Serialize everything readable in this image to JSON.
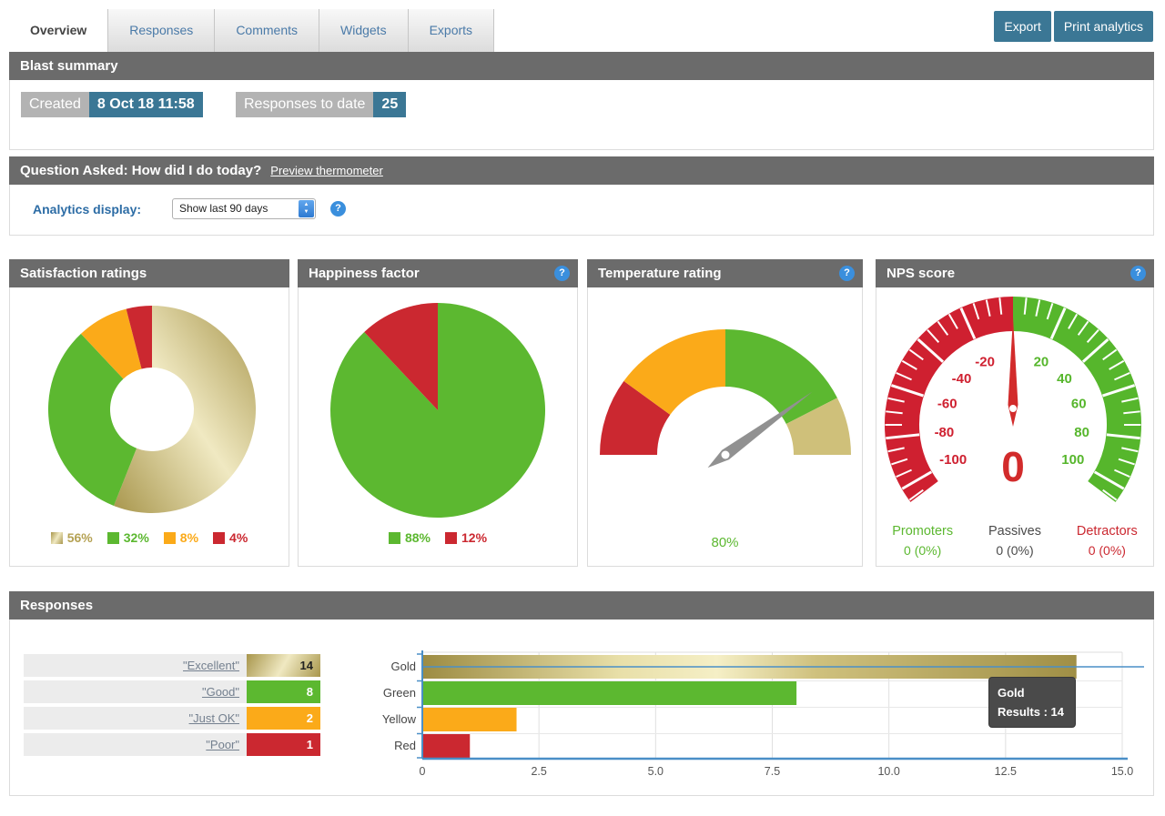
{
  "ui": {
    "help_glyph": "?"
  },
  "header": {
    "tabs": [
      {
        "label": "Overview",
        "active": true
      },
      {
        "label": "Responses",
        "active": false
      },
      {
        "label": "Comments",
        "active": false
      },
      {
        "label": "Widgets",
        "active": false
      },
      {
        "label": "Exports",
        "active": false
      }
    ],
    "buttons": [
      "Export",
      "Print analytics"
    ]
  },
  "blast": {
    "title": "Blast summary",
    "created_label": "Created",
    "created_value": "8 Oct 18 11:58",
    "responses_label": "Responses to date",
    "responses_value": "25"
  },
  "question": {
    "title": "Question Asked: How did I do today?",
    "preview_link": "Preview thermometer",
    "analytics_label": "Analytics display:",
    "select_value": "Show last 90 days"
  },
  "panels": {
    "satisfaction": {
      "title": "Satisfaction ratings"
    },
    "happiness": {
      "title": "Happiness factor"
    },
    "temperature": {
      "title": "Temperature rating"
    },
    "nps": {
      "title": "NPS score"
    }
  },
  "chart_data": [
    {
      "id": "satisfaction-donut",
      "type": "pie",
      "subtype": "donut",
      "title": "Satisfaction ratings",
      "labels": [
        "Gold",
        "Green",
        "Yellow",
        "Red"
      ],
      "values": [
        56,
        32,
        8,
        4
      ],
      "unit": "%",
      "colors": [
        "gold-gradient",
        "#5cb830",
        "#fbaa19",
        "#cb2830"
      ],
      "legend_labels": [
        "56%",
        "32%",
        "8%",
        "4%"
      ],
      "legend_position": "bottom"
    },
    {
      "id": "happiness-pie",
      "type": "pie",
      "title": "Happiness factor",
      "labels": [
        "Green",
        "Red"
      ],
      "values": [
        88,
        12
      ],
      "unit": "%",
      "colors": [
        "#5cb830",
        "#cb2830"
      ],
      "legend_labels": [
        "88%",
        "12%"
      ],
      "legend_position": "bottom"
    },
    {
      "id": "temperature-gauge",
      "type": "gauge",
      "title": "Temperature rating",
      "value": 80,
      "value_label": "80%",
      "min": 0,
      "max": 100,
      "segments": [
        {
          "from": 0,
          "to": 20,
          "color": "#cb2830"
        },
        {
          "from": 20,
          "to": 50,
          "color": "#fbaa19"
        },
        {
          "from": 50,
          "to": 85,
          "color": "#5cb830"
        },
        {
          "from": 85,
          "to": 100,
          "color": "#cfc07a"
        }
      ],
      "needle_color": "#919191"
    },
    {
      "id": "nps-gauge",
      "type": "gauge",
      "title": "NPS score",
      "value": 0,
      "value_label": "0",
      "min": -100,
      "max": 100,
      "major_ticks": [
        -100,
        -80,
        -60,
        -40,
        -20,
        20,
        40,
        60,
        80,
        100
      ],
      "negative_color": "#cf2030",
      "positive_color": "#56b62c",
      "needle_color": "#d22b2b",
      "stats": [
        {
          "label": "Promoters",
          "value": "0 (0%)",
          "color": "#5cb830"
        },
        {
          "label": "Passives",
          "value": "0 (0%)",
          "color": "#4a4a4a"
        },
        {
          "label": "Detractors",
          "value": "0 (0%)",
          "color": "#cb2830"
        }
      ]
    },
    {
      "id": "responses-bar",
      "type": "bar",
      "orientation": "horizontal",
      "categories": [
        "Gold",
        "Green",
        "Yellow",
        "Red"
      ],
      "values": [
        14,
        8,
        2,
        1
      ],
      "colors": [
        "gold-gradient",
        "#5cb830",
        "#fbaa19",
        "#cb2830"
      ],
      "xlim": [
        0,
        15
      ],
      "xticks": [
        "0",
        "2.5",
        "5.0",
        "7.5",
        "10.0",
        "12.5",
        "15.0"
      ],
      "grid": true,
      "axis_color": "#4a8fc7"
    }
  ],
  "responses": {
    "title": "Responses",
    "table": [
      {
        "label": "\"Excellent\"",
        "value": "14",
        "color": "gold"
      },
      {
        "label": "\"Good\"",
        "value": "8",
        "color": "green"
      },
      {
        "label": "\"Just OK\"",
        "value": "2",
        "color": "yellow"
      },
      {
        "label": "\"Poor\"",
        "value": "1",
        "color": "red"
      }
    ],
    "tooltip": {
      "line1": "Gold",
      "line2": "Results : 14"
    }
  },
  "colors": {
    "header_bar": "#6b6b6b",
    "accent_teal": "#3b7795",
    "tab_text": "#4a7aa8",
    "help_blue": "#3a8fdd",
    "axis_blue": "#4a8fc7",
    "green": "#5cb830",
    "red": "#cb2830",
    "yellow": "#fbaa19",
    "gold_dark": "#a8964c",
    "gold_light": "#f0e9c2"
  }
}
